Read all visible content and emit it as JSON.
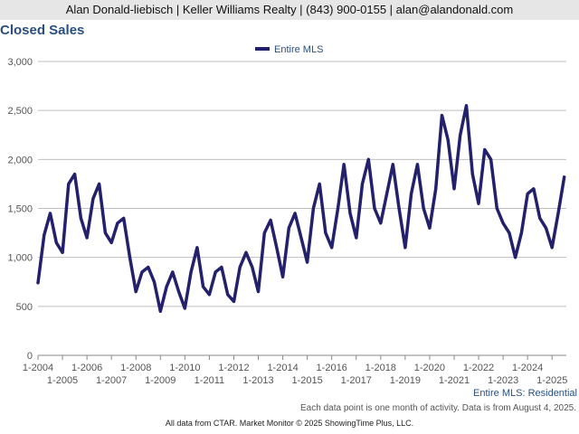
{
  "header": {
    "text": "Alan Donald-liebisch | Keller Williams Realty | (843) 900-0155 | alan@alandonald.com"
  },
  "title": "Closed Sales",
  "footer": {
    "note": "Each data point is one month of activity. Data is from August 4, 2025.",
    "source": "All data from CTAR. Market Monitor © 2025 ShowingTime Plus, LLC.",
    "series_label": "Entire MLS: Residential"
  },
  "colors": {
    "series": "#23216b",
    "grid": "#bfbfbf",
    "title": "#2a4f7f"
  },
  "chart_data": {
    "type": "line",
    "title": "Closed Sales",
    "legend": {
      "position": "top-center",
      "entries": [
        "Entire MLS"
      ]
    },
    "ylim": [
      0,
      3000
    ],
    "y_ticks": [
      0,
      500,
      1000,
      1500,
      2000,
      2500,
      3000
    ],
    "y_tick_labels": [
      "0",
      "500",
      "1,000",
      "1,500",
      "2,000",
      "2,500",
      "3,000"
    ],
    "x_tick_labels_top": [
      "1-2004",
      "1-2006",
      "1-2008",
      "1-2010",
      "1-2012",
      "1-2014",
      "1-2016",
      "1-2018",
      "1-2020",
      "1-2022",
      "1-2024"
    ],
    "x_tick_labels_bottom": [
      "1-2005",
      "1-2007",
      "1-2009",
      "1-2011",
      "1-2013",
      "1-2015",
      "1-2017",
      "1-2019",
      "1-2021",
      "1-2023",
      "1-2025"
    ],
    "grid": true,
    "series": [
      {
        "name": "Entire MLS",
        "x": [
          "1-2004",
          "4-2004",
          "7-2004",
          "10-2004",
          "1-2005",
          "4-2005",
          "7-2005",
          "10-2005",
          "1-2006",
          "4-2006",
          "7-2006",
          "10-2006",
          "1-2007",
          "4-2007",
          "7-2007",
          "10-2007",
          "1-2008",
          "4-2008",
          "7-2008",
          "10-2008",
          "1-2009",
          "4-2009",
          "7-2009",
          "10-2009",
          "1-2010",
          "4-2010",
          "7-2010",
          "10-2010",
          "1-2011",
          "4-2011",
          "7-2011",
          "10-2011",
          "1-2012",
          "4-2012",
          "7-2012",
          "10-2012",
          "1-2013",
          "4-2013",
          "7-2013",
          "10-2013",
          "1-2014",
          "4-2014",
          "7-2014",
          "10-2014",
          "1-2015",
          "4-2015",
          "7-2015",
          "10-2015",
          "1-2016",
          "4-2016",
          "7-2016",
          "10-2016",
          "1-2017",
          "4-2017",
          "7-2017",
          "10-2017",
          "1-2018",
          "4-2018",
          "7-2018",
          "10-2018",
          "1-2019",
          "4-2019",
          "7-2019",
          "10-2019",
          "1-2020",
          "4-2020",
          "7-2020",
          "10-2020",
          "1-2021",
          "4-2021",
          "7-2021",
          "10-2021",
          "1-2022",
          "4-2022",
          "7-2022",
          "10-2022",
          "1-2023",
          "4-2023",
          "7-2023",
          "10-2023",
          "1-2024",
          "4-2024",
          "7-2024",
          "10-2024",
          "1-2025",
          "4-2025",
          "7-2025"
        ],
        "values": [
          740,
          1230,
          1450,
          1150,
          1050,
          1750,
          1850,
          1400,
          1200,
          1600,
          1750,
          1250,
          1150,
          1350,
          1400,
          1000,
          650,
          850,
          900,
          750,
          450,
          700,
          850,
          650,
          480,
          850,
          1100,
          700,
          620,
          850,
          900,
          620,
          550,
          900,
          1050,
          900,
          650,
          1250,
          1380,
          1100,
          800,
          1300,
          1450,
          1200,
          950,
          1500,
          1750,
          1250,
          1100,
          1500,
          1950,
          1450,
          1200,
          1750,
          2000,
          1500,
          1350,
          1650,
          1950,
          1500,
          1100,
          1650,
          1950,
          1500,
          1300,
          1700,
          2450,
          2200,
          1700,
          2250,
          2550,
          1850,
          1550,
          2100,
          2000,
          1500,
          1350,
          1250,
          1000,
          1250,
          1650,
          1700,
          1400,
          1300,
          1100,
          1450,
          1820
        ]
      }
    ]
  }
}
